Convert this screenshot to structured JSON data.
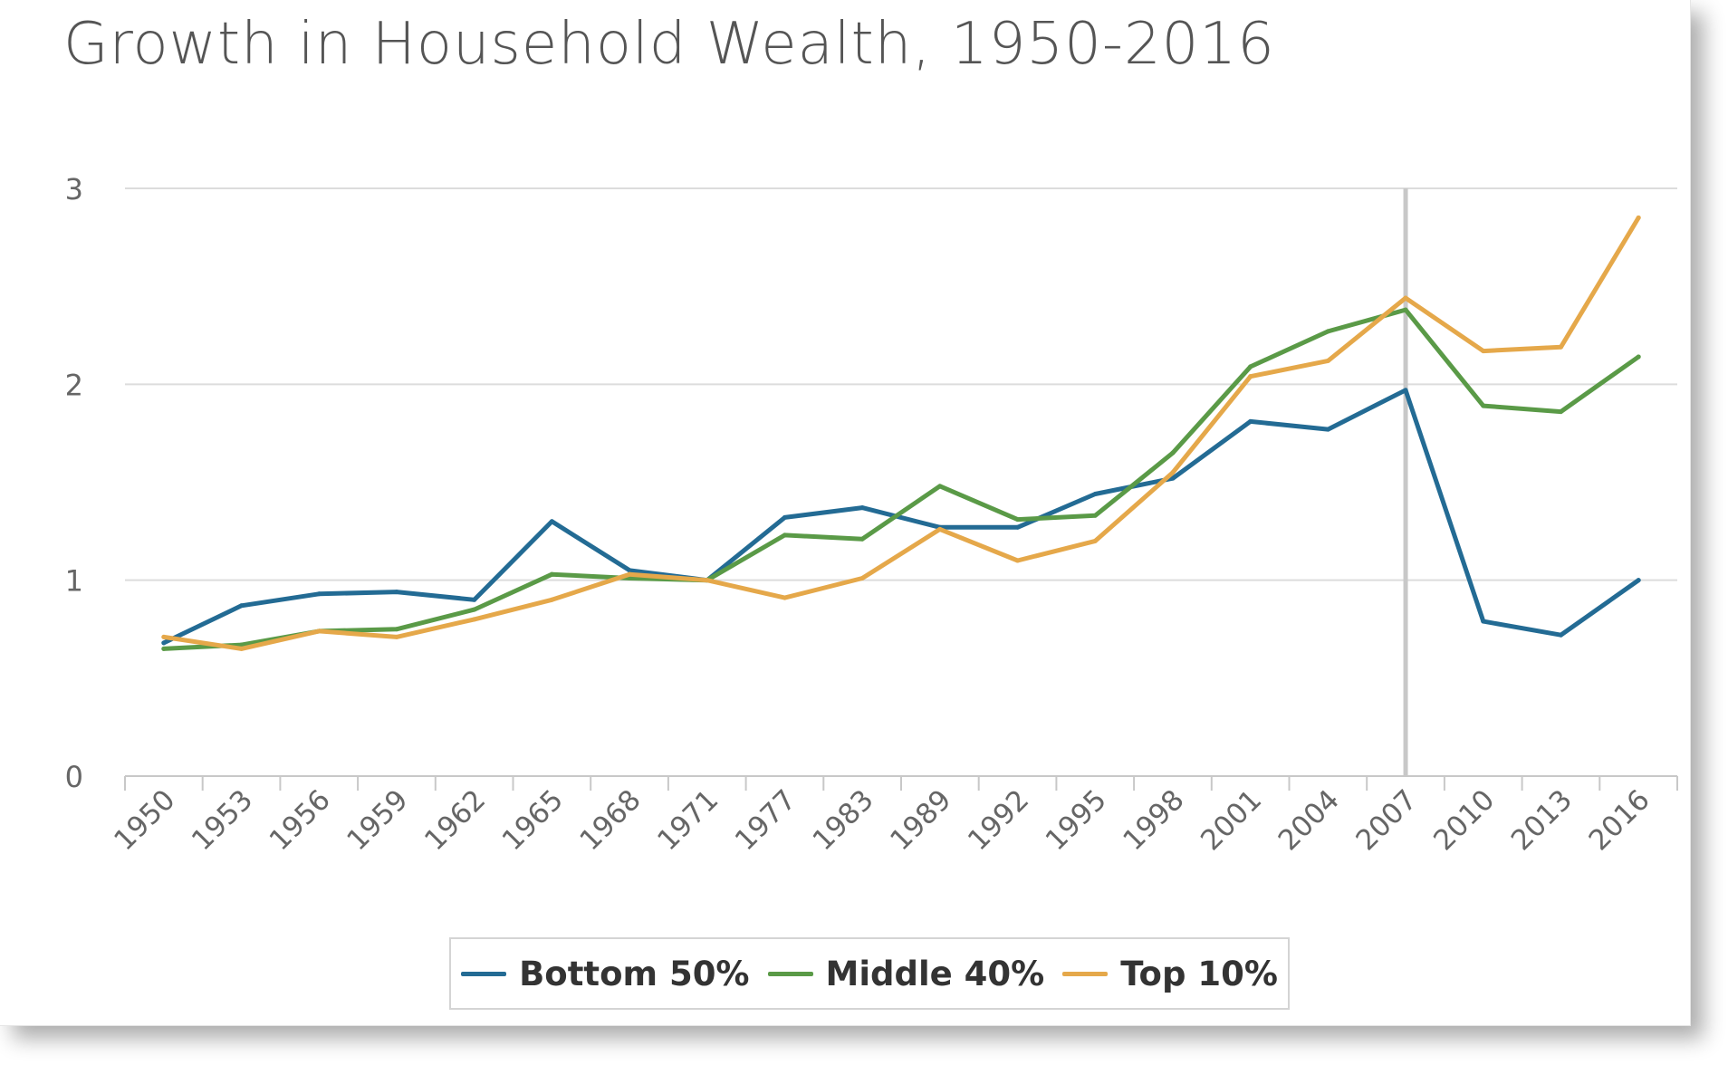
{
  "chart_data": {
    "type": "line",
    "title": "Growth in Household Wealth, 1950-2016",
    "xlabel": "",
    "ylabel": "",
    "categories": [
      "1950",
      "1953",
      "1956",
      "1959",
      "1962",
      "1965",
      "1968",
      "1971",
      "1977",
      "1983",
      "1989",
      "1992",
      "1995",
      "1998",
      "2001",
      "2004",
      "2007",
      "2010",
      "2013",
      "2016"
    ],
    "y_ticks": [
      "0",
      "1",
      "2",
      "3"
    ],
    "ylim": [
      0,
      3
    ],
    "grid": true,
    "legend_position": "bottom",
    "vertical_marker": {
      "category": "2007",
      "color": "#c8c8c8"
    },
    "series": [
      {
        "name": "Bottom 50%",
        "color": "#236b94",
        "values": [
          0.68,
          0.87,
          0.93,
          0.94,
          0.9,
          1.3,
          1.05,
          1.0,
          1.32,
          1.37,
          1.27,
          1.27,
          1.44,
          1.52,
          1.81,
          1.77,
          1.97,
          0.79,
          0.72,
          1.0
        ]
      },
      {
        "name": "Middle 40%",
        "color": "#5a9a47",
        "values": [
          0.65,
          0.67,
          0.74,
          0.75,
          0.85,
          1.03,
          1.01,
          1.0,
          1.23,
          1.21,
          1.48,
          1.31,
          1.33,
          1.65,
          2.09,
          2.27,
          2.38,
          1.89,
          1.86,
          2.14
        ]
      },
      {
        "name": "Top 10%",
        "color": "#e5a84a",
        "values": [
          0.71,
          0.65,
          0.74,
          0.71,
          0.8,
          0.9,
          1.03,
          1.0,
          0.91,
          1.01,
          1.26,
          1.1,
          1.2,
          1.55,
          2.04,
          2.12,
          2.44,
          2.17,
          2.19,
          2.85
        ]
      }
    ]
  }
}
